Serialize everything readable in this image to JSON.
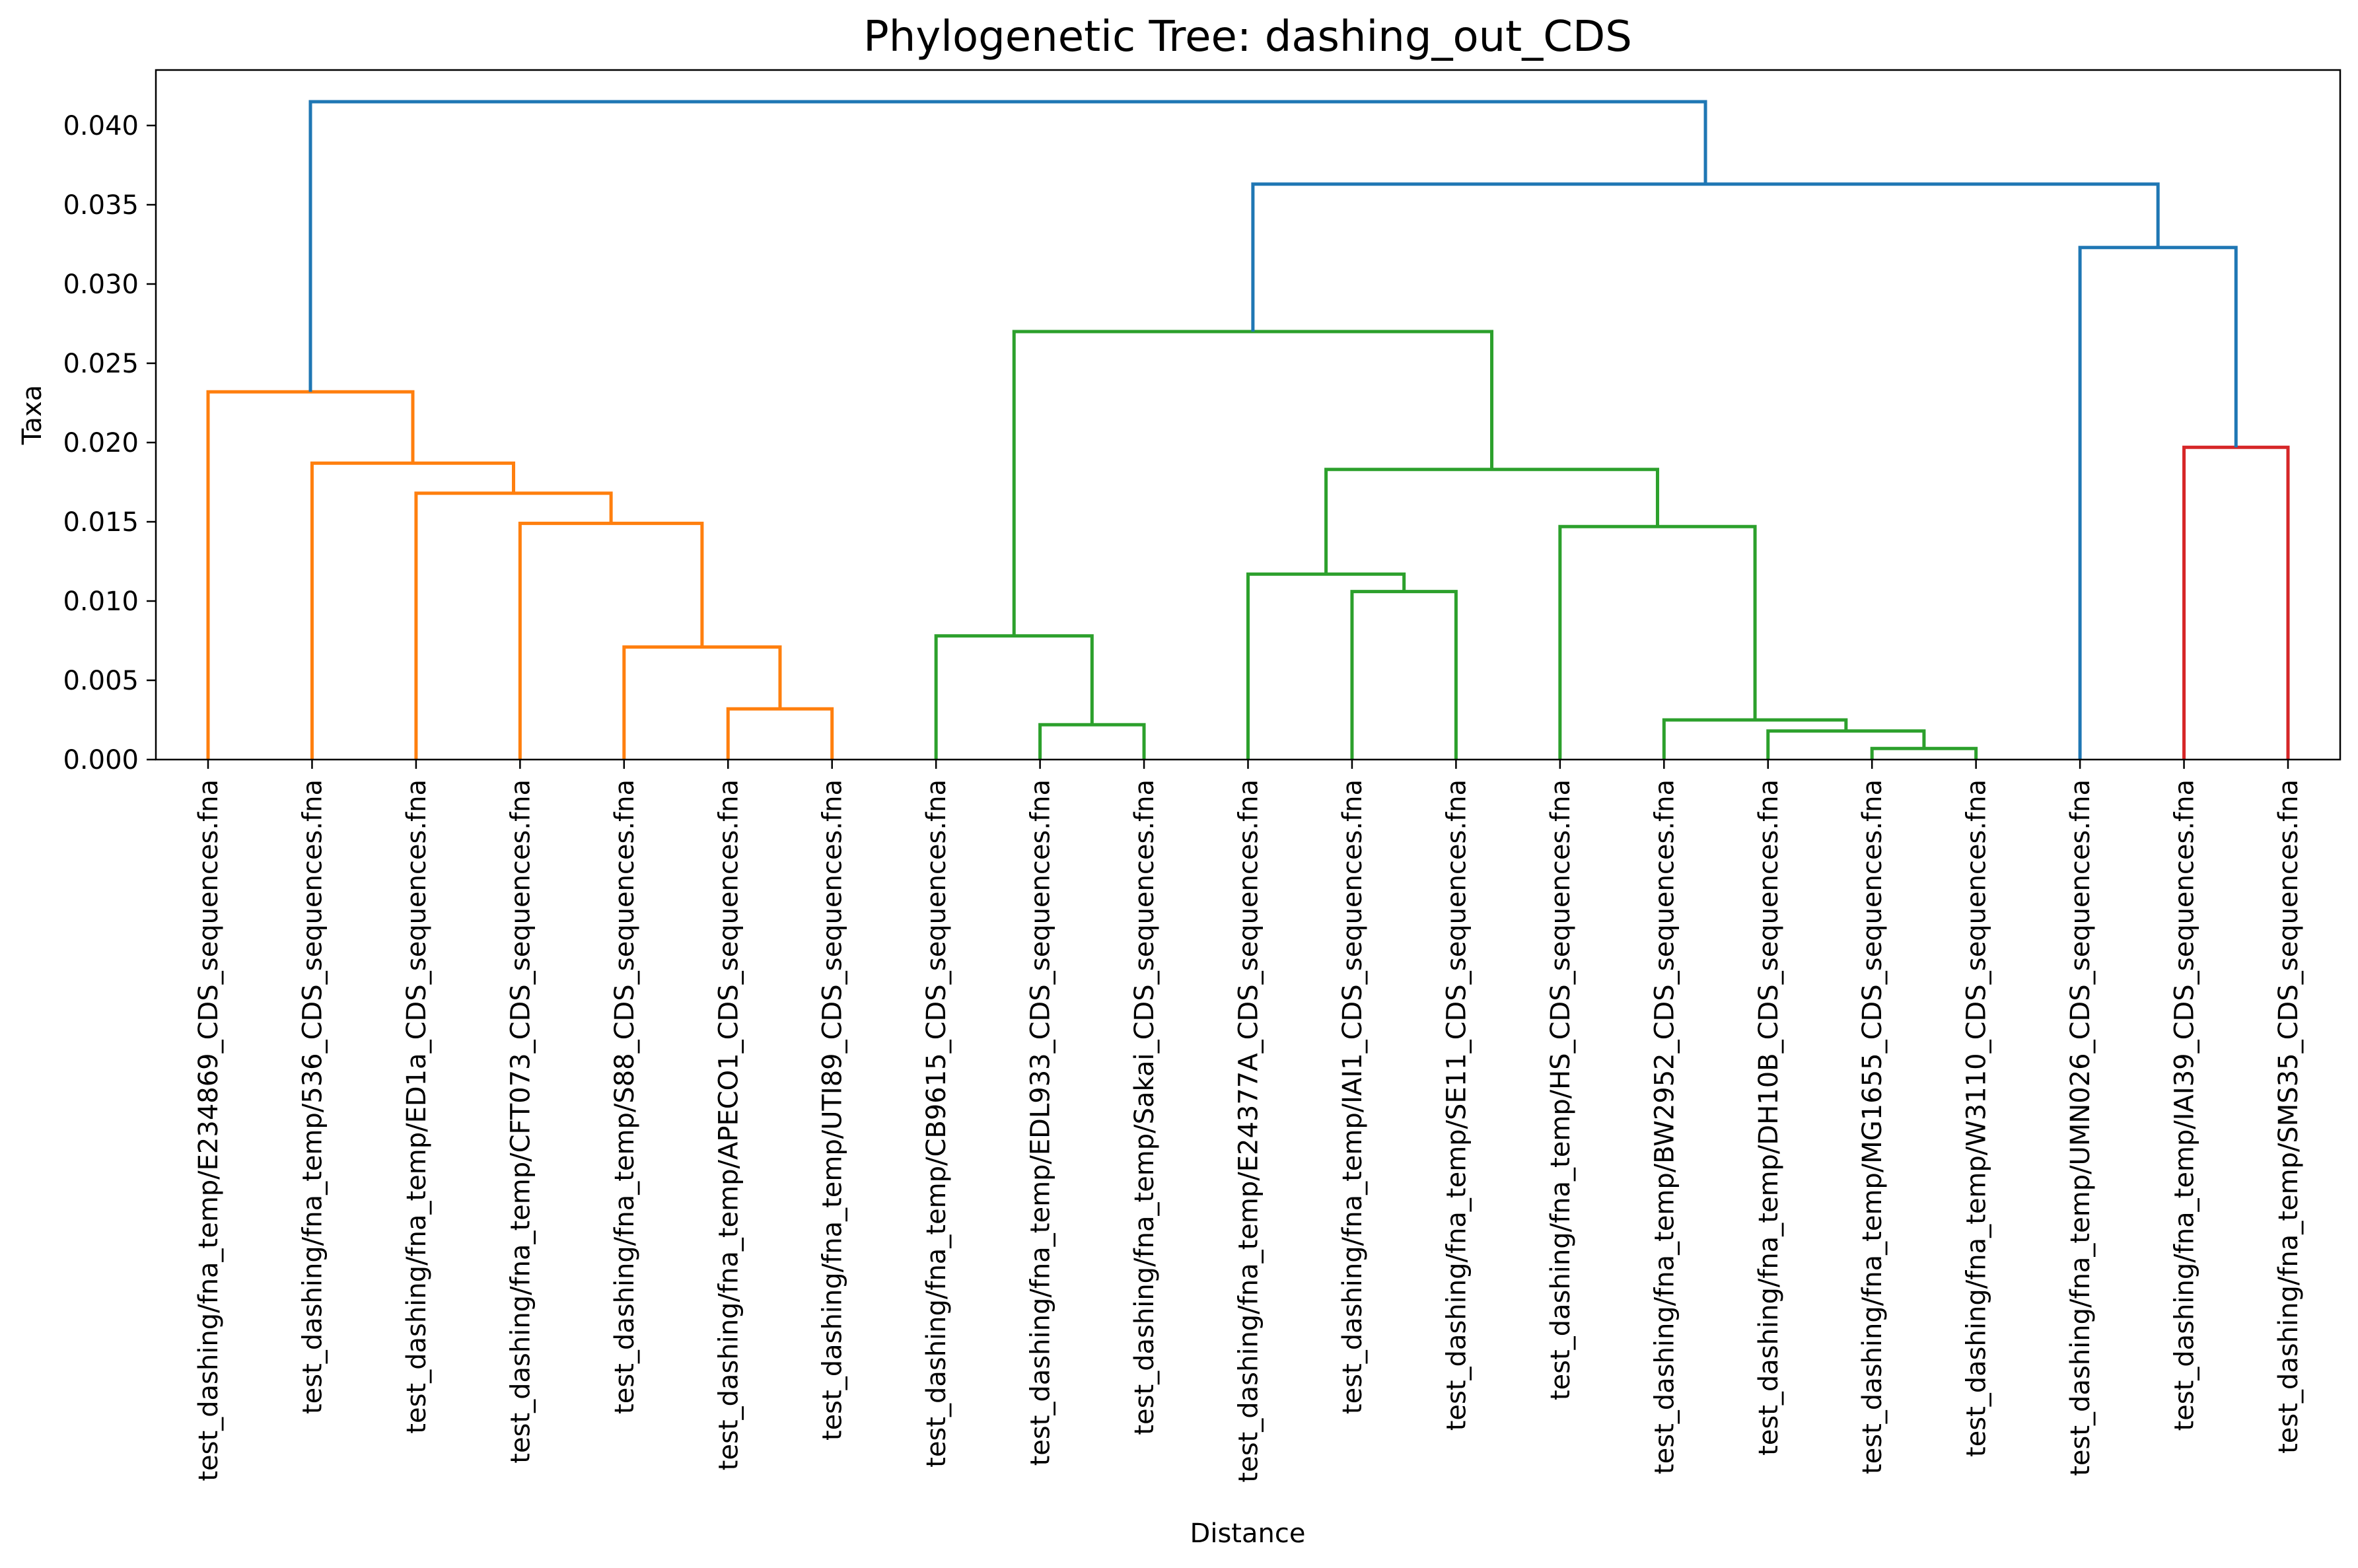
{
  "chart_data": {
    "type": "dendrogram",
    "title": "Phylogenetic Tree: dashing_out_CDS",
    "xlabel": "Distance",
    "ylabel": "Taxa",
    "ylim": [
      0,
      0.0435
    ],
    "yticks": [
      "0.000",
      "0.005",
      "0.010",
      "0.015",
      "0.020",
      "0.025",
      "0.030",
      "0.035",
      "0.040"
    ],
    "grid": false,
    "leaves": [
      "test_dashing/fna_temp/E234869_CDS_sequences.fna",
      "test_dashing/fna_temp/536_CDS_sequences.fna",
      "test_dashing/fna_temp/ED1a_CDS_sequences.fna",
      "test_dashing/fna_temp/CFT073_CDS_sequences.fna",
      "test_dashing/fna_temp/S88_CDS_sequences.fna",
      "test_dashing/fna_temp/APECO1_CDS_sequences.fna",
      "test_dashing/fna_temp/UTI89_CDS_sequences.fna",
      "test_dashing/fna_temp/CB9615_CDS_sequences.fna",
      "test_dashing/fna_temp/EDL933_CDS_sequences.fna",
      "test_dashing/fna_temp/Sakai_CDS_sequences.fna",
      "test_dashing/fna_temp/E24377A_CDS_sequences.fna",
      "test_dashing/fna_temp/IAI1_CDS_sequences.fna",
      "test_dashing/fna_temp/SE11_CDS_sequences.fna",
      "test_dashing/fna_temp/HS_CDS_sequences.fna",
      "test_dashing/fna_temp/BW2952_CDS_sequences.fna",
      "test_dashing/fna_temp/DH10B_CDS_sequences.fna",
      "test_dashing/fna_temp/MG1655_CDS_sequences.fna",
      "test_dashing/fna_temp/W3110_CDS_sequences.fna",
      "test_dashing/fna_temp/UMN026_CDS_sequences.fna",
      "test_dashing/fna_temp/IAI39_CDS_sequences.fna",
      "test_dashing/fna_temp/SMS35_CDS_sequences.fna"
    ],
    "colors": {
      "orange": "#ff7f0e",
      "green": "#2ca02c",
      "red": "#d62728",
      "blue": "#1f77b4"
    },
    "merges": [
      {
        "id": "n1",
        "left": 5,
        "right": 6,
        "height": 0.0032,
        "color": "orange"
      },
      {
        "id": "n2",
        "left": 4,
        "right": "n1",
        "height": 0.0071,
        "color": "orange"
      },
      {
        "id": "n3",
        "left": 3,
        "right": "n2",
        "height": 0.0149,
        "color": "orange"
      },
      {
        "id": "n4",
        "left": 2,
        "right": "n3",
        "height": 0.0168,
        "color": "orange"
      },
      {
        "id": "n5",
        "left": 1,
        "right": "n4",
        "height": 0.0187,
        "color": "orange"
      },
      {
        "id": "n6",
        "left": 0,
        "right": "n5",
        "height": 0.0232,
        "color": "orange"
      },
      {
        "id": "n7",
        "left": 8,
        "right": 9,
        "height": 0.0022,
        "color": "green"
      },
      {
        "id": "n8",
        "left": 7,
        "right": "n7",
        "height": 0.0078,
        "color": "green"
      },
      {
        "id": "n9",
        "left": 11,
        "right": 12,
        "height": 0.0106,
        "color": "green"
      },
      {
        "id": "n10",
        "left": 10,
        "right": "n9",
        "height": 0.0117,
        "color": "green"
      },
      {
        "id": "n11",
        "left": 16,
        "right": 17,
        "height": 0.0007,
        "color": "green"
      },
      {
        "id": "n12",
        "left": 15,
        "right": "n11",
        "height": 0.0018,
        "color": "green"
      },
      {
        "id": "n13",
        "left": 14,
        "right": "n12",
        "height": 0.0025,
        "color": "green"
      },
      {
        "id": "n14",
        "left": 13,
        "right": "n13",
        "height": 0.0147,
        "color": "green"
      },
      {
        "id": "n15",
        "left": "n10",
        "right": "n14",
        "height": 0.0183,
        "color": "green"
      },
      {
        "id": "n16",
        "left": "n8",
        "right": "n15",
        "height": 0.027,
        "color": "green"
      },
      {
        "id": "n17",
        "left": 19,
        "right": 20,
        "height": 0.0197,
        "color": "red"
      },
      {
        "id": "n18",
        "left": 18,
        "right": "n17",
        "height": 0.0323,
        "color": "blue"
      },
      {
        "id": "n19",
        "left": "n16",
        "right": "n18",
        "height": 0.0363,
        "color": "blue"
      },
      {
        "id": "n20",
        "left": "n6",
        "right": "n19",
        "height": 0.0415,
        "color": "blue"
      }
    ]
  }
}
